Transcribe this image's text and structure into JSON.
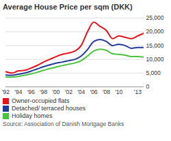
{
  "chart_data": {
    "type": "line",
    "title": "Average House Price per sqm (DKK)",
    "caption": "Source: Association of Danish Mortgage Banks",
    "x": [
      1992,
      1993,
      1994,
      1995,
      1996,
      1997,
      1998,
      1999,
      2000,
      2001,
      2002,
      2003,
      2004,
      2005,
      2006,
      2007,
      2008,
      2009,
      2010,
      2011,
      2012,
      2013,
      2014
    ],
    "series": [
      {
        "name": "Owner-occupied flats",
        "color": "#e8141b",
        "values": [
          5500,
          5000,
          5800,
          6000,
          6800,
          7800,
          9000,
          10000,
          11000,
          11800,
          12300,
          13000,
          15000,
          20000,
          23500,
          22000,
          20500,
          17500,
          18500,
          18000,
          17500,
          18500,
          19500
        ]
      },
      {
        "name": "Detached/ terraced houses",
        "color": "#1f3a9b",
        "values": [
          4300,
          4200,
          4600,
          5000,
          5700,
          6500,
          7300,
          8000,
          8600,
          9000,
          9500,
          10000,
          11200,
          13500,
          16500,
          17200,
          16500,
          15000,
          15500,
          15000,
          14000,
          14300,
          14300
        ]
      },
      {
        "name": "Holiday homes",
        "color": "#49c43c",
        "values": [
          3500,
          3500,
          3800,
          4200,
          4700,
          5300,
          6000,
          6600,
          7200,
          7700,
          8200,
          8700,
          9500,
          11200,
          13000,
          13700,
          13300,
          12000,
          11800,
          11500,
          11000,
          11000,
          10800
        ]
      }
    ],
    "xlim": [
      1992,
      2014
    ],
    "xticks": [
      {
        "value": 1992,
        "label": "'92"
      },
      {
        "value": 1994,
        "label": "'94"
      },
      {
        "value": 1996,
        "label": "'96"
      },
      {
        "value": 1998,
        "label": "'98"
      },
      {
        "value": 2000,
        "label": "'00"
      },
      {
        "value": 2002,
        "label": "'02"
      },
      {
        "value": 2004,
        "label": "'04"
      },
      {
        "value": 2006,
        "label": "'06"
      },
      {
        "value": 2008,
        "label": "'08"
      },
      {
        "value": 2010,
        "label": "'10"
      },
      {
        "value": 2013,
        "label": "'13"
      }
    ],
    "ylim": [
      0,
      25000
    ],
    "yticks": [
      0,
      {
        "value": 5000,
        "label": "5,000"
      },
      {
        "value": 10000,
        "label": "10,000"
      },
      {
        "value": 15000,
        "label": "15,000"
      },
      {
        "value": 20000,
        "label": "20,000"
      },
      {
        "value": 25000,
        "label": "25,000"
      }
    ],
    "grid": true,
    "legend": "bottom"
  }
}
